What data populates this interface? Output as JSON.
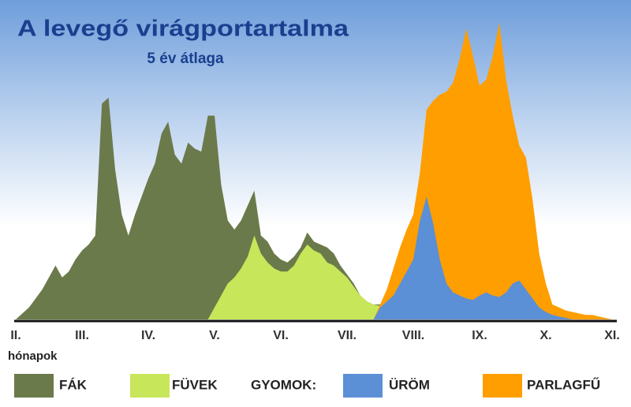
{
  "chart_data": {
    "type": "area",
    "title": "A levegő virágportartalma",
    "subtitle": "5 év átlaga",
    "x_label": "hónapok",
    "legend_group": "GYOMOK:",
    "xlim": [
      2,
      11
    ],
    "ylim": [
      0,
      100
    ],
    "xticks": [
      {
        "value": 2,
        "label": "II."
      },
      {
        "value": 3,
        "label": "III."
      },
      {
        "value": 4,
        "label": "IV."
      },
      {
        "value": 5,
        "label": "V."
      },
      {
        "value": 6,
        "label": "VI."
      },
      {
        "value": 7,
        "label": "VII."
      },
      {
        "value": 8,
        "label": "VIII."
      },
      {
        "value": 9,
        "label": "IX."
      },
      {
        "value": 10,
        "label": "X."
      },
      {
        "value": 11,
        "label": "XI."
      }
    ],
    "x": [
      2.0,
      2.1,
      2.2,
      2.3,
      2.4,
      2.5,
      2.6,
      2.7,
      2.8,
      2.9,
      3.0,
      3.1,
      3.2,
      3.3,
      3.4,
      3.5,
      3.6,
      3.7,
      3.8,
      3.9,
      4.0,
      4.1,
      4.2,
      4.3,
      4.4,
      4.5,
      4.6,
      4.7,
      4.8,
      4.9,
      5.0,
      5.1,
      5.2,
      5.3,
      5.4,
      5.5,
      5.6,
      5.7,
      5.8,
      5.9,
      6.0,
      6.1,
      6.2,
      6.3,
      6.4,
      6.5,
      6.6,
      6.7,
      6.8,
      6.9,
      7.0,
      7.1,
      7.2,
      7.3,
      7.4,
      7.5,
      7.6,
      7.7,
      7.8,
      7.9,
      8.0,
      8.1,
      8.2,
      8.3,
      8.4,
      8.5,
      8.6,
      8.7,
      8.8,
      8.9,
      9.0,
      9.1,
      9.2,
      9.3,
      9.4,
      9.5,
      9.6,
      9.7,
      9.8,
      9.9,
      10.0,
      10.1,
      10.2,
      10.3,
      10.4,
      10.5,
      10.6,
      10.7,
      10.8,
      10.9,
      11.0
    ],
    "series": [
      {
        "name": "FÁK",
        "color": "#6b7a4a",
        "values": [
          0,
          2,
          4,
          7,
          10,
          14,
          18,
          14,
          16,
          20,
          23,
          25,
          28,
          72,
          74,
          50,
          35,
          28,
          35,
          41,
          47,
          52,
          62,
          66,
          55,
          52,
          59,
          57,
          56,
          68,
          68,
          45,
          33,
          30,
          33,
          38,
          43,
          28,
          26,
          22,
          20,
          19,
          21,
          24,
          29,
          26,
          25,
          24,
          22,
          18,
          15,
          12,
          8,
          6,
          5,
          5,
          4,
          3.5,
          3,
          3,
          2.5,
          2,
          2,
          1.5,
          1.5,
          1,
          1,
          1,
          0.5,
          0.5,
          0.5,
          0,
          0,
          0,
          0,
          0,
          0,
          0,
          0,
          0,
          0,
          0,
          0,
          0,
          0,
          0,
          0,
          0,
          0,
          0,
          0
        ]
      },
      {
        "name": "FÜVEK",
        "color": "#c8e65a",
        "values": [
          0,
          0,
          0,
          0,
          0,
          0,
          0,
          0,
          0,
          0,
          0,
          0,
          0,
          0,
          0,
          0,
          0,
          0,
          0,
          0,
          0,
          0,
          0,
          0,
          0,
          0,
          0,
          0,
          0,
          0,
          4,
          8,
          12,
          14,
          17,
          21,
          28,
          22,
          19,
          17,
          16,
          16,
          18,
          22,
          25,
          23,
          22,
          19,
          18,
          16,
          14,
          11,
          8,
          6,
          5,
          4.5,
          4,
          4,
          3.5,
          3,
          3,
          2.5,
          2.5,
          2.5,
          2.5,
          2,
          2,
          2,
          2,
          2,
          2,
          2,
          1.8,
          1.7,
          1.6,
          1.5,
          1.4,
          1.2,
          1,
          0.9,
          0.8,
          0.5,
          0.3,
          0,
          0,
          0,
          0,
          0,
          0,
          0,
          0
        ]
      },
      {
        "name": "ÜRÖM",
        "color": "#5b8fd6",
        "values": [
          0,
          0,
          0,
          0,
          0,
          0,
          0,
          0,
          0,
          0,
          0,
          0,
          0,
          0,
          0,
          0,
          0,
          0,
          0,
          0,
          0,
          0,
          0,
          0,
          0,
          0,
          0,
          0,
          0,
          0,
          0,
          0,
          0,
          0,
          0,
          0,
          0,
          0,
          0,
          0,
          0,
          0,
          0,
          0,
          0,
          0,
          0,
          0,
          0,
          0,
          0,
          0,
          0,
          0,
          0,
          4,
          6,
          8,
          12,
          16,
          20,
          33,
          41,
          32,
          20,
          12,
          9,
          8,
          7,
          6.5,
          8,
          9,
          8,
          7.5,
          9,
          12,
          13,
          10,
          7,
          4,
          2.5,
          1.5,
          1,
          0.5,
          0,
          0,
          0,
          0,
          0,
          0,
          0
        ]
      },
      {
        "name": "PARLAGFŰ",
        "color": "#ff9e00",
        "values": [
          0,
          0,
          0,
          0,
          0,
          0,
          0,
          0,
          0,
          0,
          0,
          0,
          0,
          0,
          0,
          0,
          0,
          0,
          0,
          0,
          0,
          0,
          0,
          0,
          0,
          0,
          0,
          0,
          0,
          0,
          0,
          0,
          0,
          0,
          0,
          0,
          0,
          0,
          0,
          0,
          0,
          0,
          0,
          0,
          0,
          0,
          0,
          0,
          0,
          0,
          0,
          0,
          0,
          0,
          0,
          5,
          10,
          17,
          24,
          30,
          35,
          49,
          70,
          73,
          75,
          76,
          79,
          87,
          97,
          88,
          78,
          80,
          88,
          99,
          80,
          68,
          58,
          54,
          40,
          22,
          12,
          5,
          4,
          3,
          2.5,
          2,
          1.5,
          1.5,
          1,
          0.5,
          0
        ]
      }
    ]
  }
}
